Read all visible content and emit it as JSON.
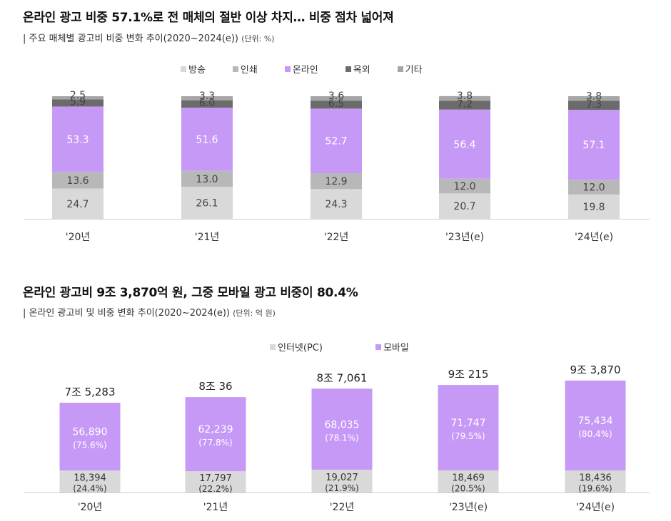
{
  "chart_data": [
    {
      "type": "bar",
      "stacked": true,
      "title": "온라인 광고 비중 57.1%로 전 매체의 절반 이상 차지… 비중 점차 넓어져",
      "subtitle": "| 주요 매체별 광고비 비중 변화 추이(2020~2024(e))",
      "unit": "(단위: %)",
      "categories": [
        "'20년",
        "'21년",
        "'22년",
        "'23년(e)",
        "'24년(e)"
      ],
      "legend": [
        "방송",
        "인쇄",
        "온라인",
        "옥외",
        "기타"
      ],
      "series": [
        {
          "name": "방송",
          "color": "#d9d9d9",
          "values": [
            24.7,
            26.1,
            24.3,
            20.7,
            19.8
          ]
        },
        {
          "name": "인쇄",
          "color": "#b8b8b8",
          "values": [
            13.6,
            13.0,
            12.9,
            12.0,
            12.0
          ]
        },
        {
          "name": "온라인",
          "color": "#c799f7",
          "values": [
            53.3,
            51.6,
            52.7,
            56.4,
            57.1
          ]
        },
        {
          "name": "옥외",
          "color": "#6b6b6b",
          "values": [
            5.9,
            6.0,
            6.5,
            7.2,
            7.3
          ]
        },
        {
          "name": "기타",
          "color": "#a6a6a6",
          "values": [
            2.5,
            3.3,
            3.6,
            3.8,
            3.8
          ]
        }
      ]
    },
    {
      "type": "bar",
      "stacked": true,
      "title": "온라인 광고비 9조 3,870억 원, 그중 모바일 광고 비중이 80.4%",
      "subtitle": "| 온라인 광고비 및 비중 변화 추이(2020~2024(e))",
      "unit": "(단위: 억 원)",
      "categories": [
        "'20년",
        "'21년",
        "'22년",
        "'23년(e)",
        "'24년(e)"
      ],
      "legend": [
        "인터넷(PC)",
        "모바일"
      ],
      "totals": [
        75283,
        80036,
        87061,
        90215,
        93870
      ],
      "total_labels": [
        "7조 5,283",
        "8조 36",
        "8조 7,061",
        "9조 215",
        "9조 3,870"
      ],
      "series": [
        {
          "name": "인터넷(PC)",
          "color": "#d9d9d9",
          "values": [
            18394,
            17797,
            19027,
            18469,
            18436
          ],
          "labels": [
            "18,394",
            "17,797",
            "19,027",
            "18,469",
            "18,436"
          ],
          "shares": [
            "(24.4%)",
            "(22.2%)",
            "(21.9%)",
            "(20.5%)",
            "(19.6%)"
          ]
        },
        {
          "name": "모바일",
          "color": "#c799f7",
          "values": [
            56890,
            62239,
            68035,
            71747,
            75434
          ],
          "labels": [
            "56,890",
            "62,239",
            "68,035",
            "71,747",
            "75,434"
          ],
          "shares": [
            "(75.6%)",
            "(77.8%)",
            "(78.1%)",
            "(79.5%)",
            "(80.4%)"
          ]
        }
      ]
    }
  ]
}
